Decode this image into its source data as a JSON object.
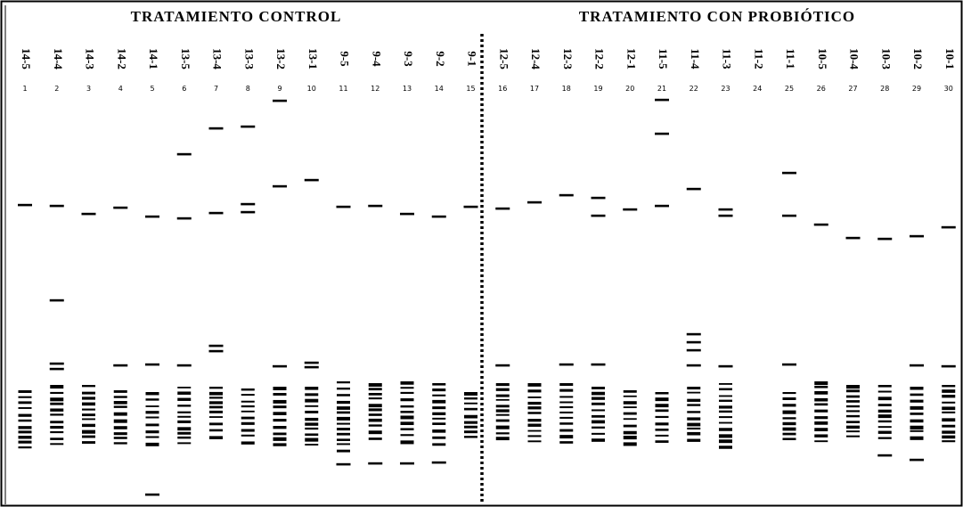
{
  "header": {
    "left_title": "TRATAMIENTO CONTROL",
    "right_title": "TRATAMIENTO CON PROBIÓTICO"
  },
  "lanes": {
    "labels": [
      "14-5",
      "14-4",
      "14-3",
      "14-2",
      "14-1",
      "13-5",
      "13-4",
      "13-3",
      "13-2",
      "13-1",
      "9-5",
      "9-4",
      "9-3",
      "9-2",
      "9-1",
      "12-5",
      "12-4",
      "12-3",
      "12-2",
      "12-1",
      "11-5",
      "11-4",
      "11-3",
      "11-2",
      "11-1",
      "10-5",
      "10-4",
      "10-3",
      "10-2",
      "10-1"
    ],
    "numbers": [
      "1",
      "2",
      "3",
      "4",
      "5",
      "6",
      "7",
      "8",
      "9",
      "10",
      "11",
      "12",
      "13",
      "14",
      "15",
      "16",
      "17",
      "18",
      "19",
      "20",
      "21",
      "22",
      "23",
      "24",
      "25",
      "26",
      "27",
      "28",
      "29",
      "30"
    ]
  }
}
